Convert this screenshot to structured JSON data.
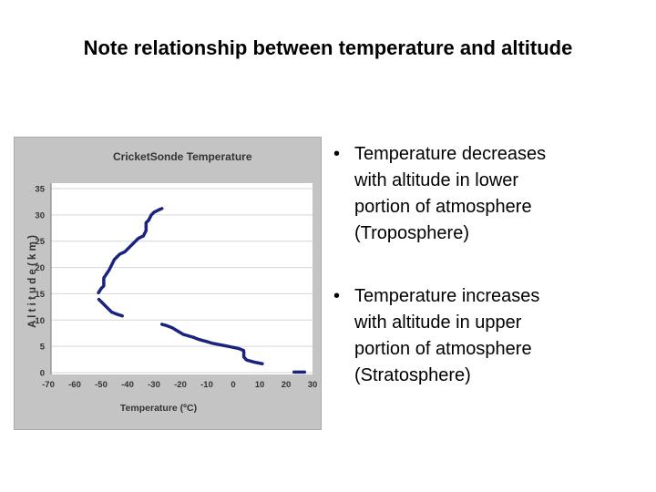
{
  "slide": {
    "title": "Note relationship between temperature and altitude"
  },
  "bullets": [
    {
      "marker": "•",
      "lines": [
        "Temperature decreases",
        "with altitude in lower",
        "portion of atmosphere",
        "(Troposphere)"
      ]
    },
    {
      "marker": "•",
      "lines": [
        "Temperature increases",
        "with altitude in upper",
        "portion of atmosphere",
        "(Stratosphere)"
      ]
    }
  ],
  "chart_data": {
    "type": "line",
    "title": "CricketSonde Temperature",
    "xlabel": "Temperature (ºC)",
    "ylabel": "A l t i t u d e  ( k m )",
    "xlim": [
      -70,
      30
    ],
    "ylim": [
      0,
      35
    ],
    "x_ticks": [
      "-70",
      "-60",
      "-50",
      "-40",
      "-30",
      "-20",
      "-10",
      "0",
      "10",
      "20",
      "30"
    ],
    "y_ticks": [
      "0",
      "5",
      "10",
      "15",
      "20",
      "25",
      "30",
      "35"
    ],
    "grid": true,
    "legend": "none",
    "colors": {
      "series": "#1a237e",
      "background": "#c4c4c4",
      "plot_area": "#ffffff",
      "grid": "#d6d6d6"
    },
    "series": [
      {
        "segments": [
          {
            "x": [
              23,
              25,
              27
            ],
            "y": [
              0.1,
              0.1,
              0.1
            ]
          },
          {
            "x": [
              11,
              8,
              5,
              4,
              4,
              2,
              0,
              -2,
              -5,
              -8,
              -10,
              -13,
              -15,
              -17,
              -19,
              -21,
              -23,
              -25,
              -27
            ],
            "y": [
              1.7,
              2.0,
              2.4,
              3.0,
              4.2,
              4.6,
              4.8,
              5.0,
              5.3,
              5.6,
              5.9,
              6.3,
              6.7,
              7.0,
              7.3,
              7.9,
              8.5,
              8.9,
              9.2
            ]
          },
          {
            "x": [
              -42,
              -44,
              -46,
              -47,
              -48,
              -49,
              -50,
              -51
            ],
            "y": [
              10.8,
              11.1,
              11.5,
              12.0,
              12.5,
              13.0,
              13.5,
              14.0
            ]
          },
          {
            "x": [
              -51,
              -50,
              -49,
              -49,
              -47,
              -46,
              -45,
              -43,
              -41,
              -40,
              -38,
              -37,
              -36,
              -34,
              -33,
              -33,
              -32,
              -31,
              -30,
              -28,
              -27
            ],
            "y": [
              15.2,
              16.0,
              16.5,
              18.0,
              19.5,
              20.5,
              21.5,
              22.5,
              23.0,
              23.5,
              24.5,
              25.0,
              25.5,
              26.0,
              27.0,
              28.5,
              29.0,
              30.0,
              30.5,
              31.0,
              31.2
            ]
          }
        ]
      }
    ]
  }
}
